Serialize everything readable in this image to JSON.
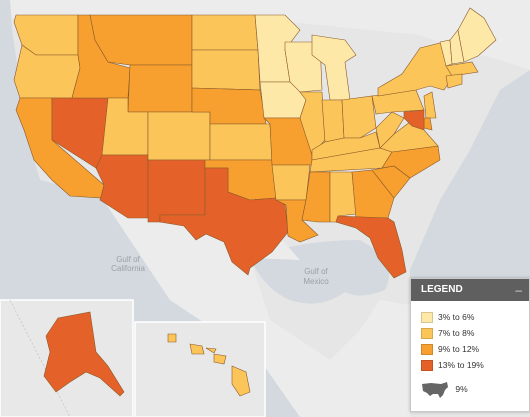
{
  "colors": {
    "bin1": "#fde8a8",
    "bin2": "#fcc55a",
    "bin3": "#f7a02f",
    "bin4": "#e4622a",
    "water": "#cfd6de",
    "land_outside": "#eeeeee"
  },
  "legend": {
    "title": "LEGEND",
    "minimize_icon": "minus-icon",
    "items": [
      {
        "label": "3% to 6%",
        "color": "#fde8a8"
      },
      {
        "label": "7% to 8%",
        "color": "#fcc55a"
      },
      {
        "label": "9% to 12%",
        "color": "#f7a02f"
      },
      {
        "label": "13% to 19%",
        "color": "#e4622a"
      }
    ],
    "us_value": "9%",
    "us_icon": "usa-silhouette-icon"
  },
  "labels": {
    "gulf_california": [
      "Gulf of",
      "California"
    ],
    "gulf_mexico": [
      "Gulf of",
      "Mexico"
    ]
  },
  "states": {
    "WA": "bin2",
    "OR": "bin2",
    "CA": "bin3",
    "NV": "bin4",
    "ID": "bin3",
    "MT": "bin3",
    "WY": "bin3",
    "UT": "bin2",
    "AZ": "bin4",
    "CO": "bin2",
    "NM": "bin4",
    "ND": "bin2",
    "SD": "bin2",
    "NE": "bin3",
    "KS": "bin2",
    "OK": "bin3",
    "TX": "bin4",
    "MN": "bin1",
    "IA": "bin1",
    "MO": "bin3",
    "AR": "bin2",
    "LA": "bin3",
    "WI": "bin1",
    "IL": "bin2",
    "MI": "bin1",
    "IN": "bin2",
    "OH": "bin2",
    "KY": "bin2",
    "TN": "bin2",
    "MS": "bin3",
    "AL": "bin2",
    "GA": "bin3",
    "FL": "bin4",
    "SC": "bin3",
    "NC": "bin3",
    "VA": "bin2",
    "WV": "bin2",
    "PA": "bin2",
    "NY": "bin2",
    "VT": "bin1",
    "NH": "bin1",
    "ME": "bin1",
    "MA": "bin2",
    "CT": "bin2",
    "NJ": "bin2",
    "DE": "bin3",
    "MD": "bin4",
    "AK": "bin4",
    "HI": "bin2"
  }
}
